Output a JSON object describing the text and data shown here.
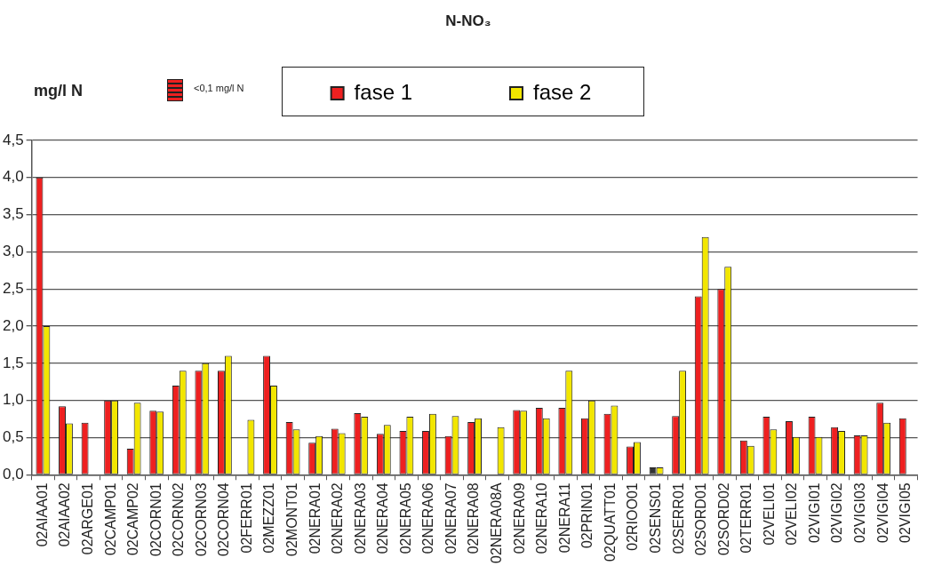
{
  "chart_data": {
    "type": "bar",
    "title": "N-NO₃",
    "categories": [
      "02AIAA01",
      "02AIAA02",
      "02ARGE01",
      "02CAMP01",
      "02CAMP02",
      "02CORN01",
      "02CORN02",
      "02CORN03",
      "02CORN04",
      "02FERR01",
      "02MEZZ01",
      "02MONT01",
      "02NERA01",
      "02NERA02",
      "02NERA03",
      "02NERA04",
      "02NERA05",
      "02NERA06",
      "02NERA07",
      "02NERA08",
      "02NERA08A",
      "02NERA09",
      "02NERA10",
      "02NERA11",
      "02PRIN01",
      "02QUATT01",
      "02RIOO01",
      "02SENS01",
      "02SERR01",
      "02SORD01",
      "02SORD02",
      "02TERR01",
      "02VELI01",
      "02VELI02",
      "02VIGI01",
      "02VIGI02",
      "02VIGI03",
      "02VIGI04",
      "02VIGI05"
    ],
    "series": [
      {
        "name": "fase 1",
        "color": "#ee2020",
        "colors": [
          "#ee2020",
          "#ee2020",
          "#ee2020",
          "#ee2020",
          "#ee2020",
          "#ee2020",
          "#ee2020",
          "#ee2020",
          "#ee2020",
          "#ee2020",
          "#ee2020",
          "#ee2020",
          "#ee2020",
          "#ee2020",
          "#ee2020",
          "#ee2020",
          "#ee2020",
          "#ee2020",
          "#ee2020",
          "#ee2020",
          "#ee2020",
          "#ee2020",
          "#ee2020",
          "#ee2020",
          "#ee2020",
          "#ee2020",
          "#ee2020",
          "#333333",
          "#ee2020",
          "#ee2020",
          "#ee2020",
          "#ee2020",
          "#ee2020",
          "#ee2020",
          "#ee2020",
          "#ee2020",
          "#ee2020",
          "#ee2020",
          "#ee2020"
        ],
        "values": [
          4.0,
          0.92,
          0.7,
          1.0,
          0.35,
          0.86,
          1.2,
          1.4,
          1.4,
          null,
          1.6,
          0.71,
          0.43,
          0.62,
          0.83,
          0.55,
          0.59,
          0.59,
          0.52,
          0.71,
          null,
          0.87,
          0.9,
          0.9,
          0.76,
          0.82,
          0.38,
          0.1,
          0.79,
          2.4,
          2.5,
          0.46,
          0.78,
          0.72,
          0.78,
          0.64,
          0.53,
          0.97,
          0.76
        ]
      },
      {
        "name": "fase 2",
        "color": "#f2e600",
        "values": [
          2.0,
          0.69,
          null,
          1.0,
          0.97,
          0.85,
          1.4,
          1.5,
          1.6,
          0.74,
          1.2,
          0.61,
          0.52,
          0.56,
          0.78,
          0.67,
          0.78,
          0.82,
          0.79,
          0.76,
          0.64,
          0.86,
          0.76,
          1.4,
          1.0,
          0.93,
          0.44,
          0.1,
          1.4,
          3.2,
          2.8,
          0.39,
          0.61,
          0.51,
          0.51,
          0.59,
          0.53,
          0.7,
          null
        ]
      }
    ],
    "ylim": [
      0,
      4.5
    ],
    "yticks": [
      {
        "value": 0,
        "label": "0,0"
      },
      {
        "value": 0.5,
        "label": "0,5"
      },
      {
        "value": 1,
        "label": "1,0"
      },
      {
        "value": 1.5,
        "label": "1,5"
      },
      {
        "value": 2,
        "label": "2,0"
      },
      {
        "value": 2.5,
        "label": "2,5"
      },
      {
        "value": 3,
        "label": "3,0"
      },
      {
        "value": 3.5,
        "label": "3,5"
      },
      {
        "value": 4,
        "label": "4,0"
      },
      {
        "value": 4.5,
        "label": "4,5"
      }
    ],
    "annotations": [
      "mg/l N",
      "<0,1 mg/l N"
    ],
    "grid": "y",
    "legend": "top"
  }
}
